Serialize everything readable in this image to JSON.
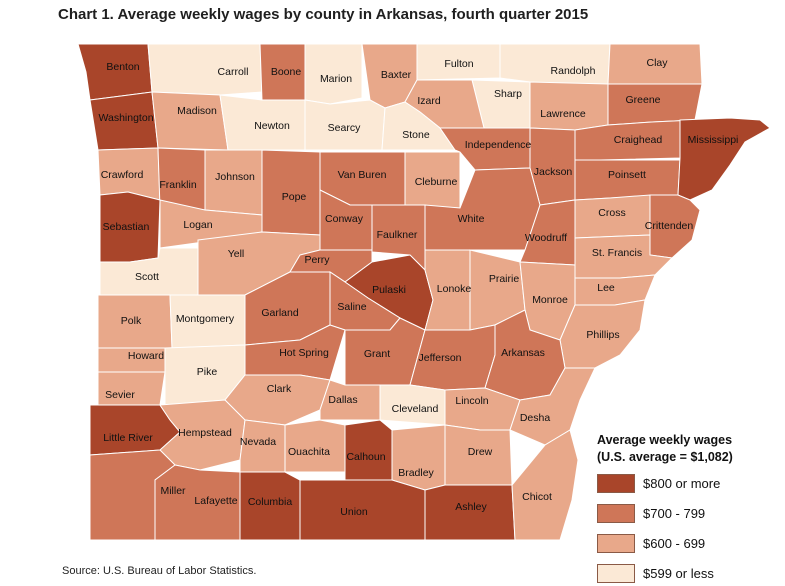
{
  "title": "Chart 1. Average weekly wages by county in Arkansas, fourth quarter 2015",
  "source": "Source: U.S. Bureau of Labor Statistics.",
  "legend": {
    "title_line1": "Average weekly wages",
    "title_line2": "(U.S. average = $1,082)",
    "items": [
      {
        "label": "$800 or more",
        "color": "#a9452a"
      },
      {
        "label": "$700 - 799",
        "color": "#cf7658"
      },
      {
        "label": "$600 - 699",
        "color": "#e8a88a"
      },
      {
        "label": "$599 or less",
        "color": "#fbe9d6"
      }
    ]
  },
  "counties": [
    {
      "name": "Benton",
      "tier": 0
    },
    {
      "name": "Carroll",
      "tier": 3
    },
    {
      "name": "Boone",
      "tier": 1
    },
    {
      "name": "Marion",
      "tier": 3
    },
    {
      "name": "Baxter",
      "tier": 2
    },
    {
      "name": "Fulton",
      "tier": 3
    },
    {
      "name": "Randolph",
      "tier": 3
    },
    {
      "name": "Clay",
      "tier": 2
    },
    {
      "name": "Sharp",
      "tier": 3
    },
    {
      "name": "Izard",
      "tier": 2
    },
    {
      "name": "Washington",
      "tier": 0
    },
    {
      "name": "Madison",
      "tier": 2
    },
    {
      "name": "Newton",
      "tier": 3
    },
    {
      "name": "Searcy",
      "tier": 3
    },
    {
      "name": "Stone",
      "tier": 3
    },
    {
      "name": "Lawrence",
      "tier": 2
    },
    {
      "name": "Greene",
      "tier": 1
    },
    {
      "name": "Crawford",
      "tier": 2
    },
    {
      "name": "Franklin",
      "tier": 1
    },
    {
      "name": "Johnson",
      "tier": 2
    },
    {
      "name": "Pope",
      "tier": 1
    },
    {
      "name": "Van Buren",
      "tier": 1
    },
    {
      "name": "Cleburne",
      "tier": 2
    },
    {
      "name": "Independence",
      "tier": 1
    },
    {
      "name": "Jackson",
      "tier": 1
    },
    {
      "name": "Craighead",
      "tier": 1
    },
    {
      "name": "Poinsett",
      "tier": 1
    },
    {
      "name": "Mississippi",
      "tier": 0
    },
    {
      "name": "Sebastian",
      "tier": 0
    },
    {
      "name": "Logan",
      "tier": 2
    },
    {
      "name": "Conway",
      "tier": 1
    },
    {
      "name": "Faulkner",
      "tier": 1
    },
    {
      "name": "White",
      "tier": 1
    },
    {
      "name": "Woodruff",
      "tier": 1
    },
    {
      "name": "Cross",
      "tier": 2
    },
    {
      "name": "Crittenden",
      "tier": 1
    },
    {
      "name": "Scott",
      "tier": 3
    },
    {
      "name": "Yell",
      "tier": 2
    },
    {
      "name": "Perry",
      "tier": 1
    },
    {
      "name": "Pulaski",
      "tier": 0
    },
    {
      "name": "Lonoke",
      "tier": 2
    },
    {
      "name": "Prairie",
      "tier": 2
    },
    {
      "name": "St. Francis",
      "tier": 2
    },
    {
      "name": "Lee",
      "tier": 2
    },
    {
      "name": "Polk",
      "tier": 2
    },
    {
      "name": "Montgomery",
      "tier": 3
    },
    {
      "name": "Garland",
      "tier": 1
    },
    {
      "name": "Saline",
      "tier": 1
    },
    {
      "name": "Monroe",
      "tier": 2
    },
    {
      "name": "Phillips",
      "tier": 2
    },
    {
      "name": "Howard",
      "tier": 2
    },
    {
      "name": "Hot Spring",
      "tier": 1
    },
    {
      "name": "Grant",
      "tier": 1
    },
    {
      "name": "Jefferson",
      "tier": 1
    },
    {
      "name": "Arkansas",
      "tier": 1
    },
    {
      "name": "Sevier",
      "tier": 2
    },
    {
      "name": "Pike",
      "tier": 3
    },
    {
      "name": "Clark",
      "tier": 2
    },
    {
      "name": "Dallas",
      "tier": 2
    },
    {
      "name": "Cleveland",
      "tier": 3
    },
    {
      "name": "Lincoln",
      "tier": 2
    },
    {
      "name": "Desha",
      "tier": 2
    },
    {
      "name": "Little River",
      "tier": 0
    },
    {
      "name": "Hempstead",
      "tier": 2
    },
    {
      "name": "Nevada",
      "tier": 2
    },
    {
      "name": "Ouachita",
      "tier": 2
    },
    {
      "name": "Calhoun",
      "tier": 0
    },
    {
      "name": "Drew",
      "tier": 2
    },
    {
      "name": "Bradley",
      "tier": 2
    },
    {
      "name": "Miller",
      "tier": 1
    },
    {
      "name": "Lafayette",
      "tier": 1
    },
    {
      "name": "Columbia",
      "tier": 0
    },
    {
      "name": "Union",
      "tier": 0
    },
    {
      "name": "Ashley",
      "tier": 0
    },
    {
      "name": "Chicot",
      "tier": 2
    }
  ]
}
